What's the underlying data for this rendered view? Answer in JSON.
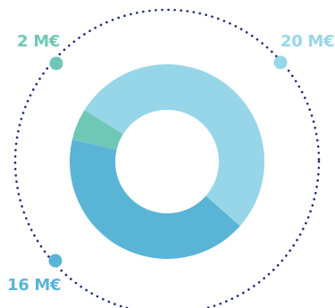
{
  "chart_data": {
    "type": "pie",
    "style": "donut",
    "slices": [
      {
        "label": "20 M€",
        "value": 20,
        "color": "#97d6e8"
      },
      {
        "label": "16 M€",
        "value": 16,
        "color": "#5ab4d6"
      },
      {
        "label": "2 M€",
        "value": 2,
        "color": "#6ec8b5"
      }
    ],
    "units": "M€",
    "outer_ring": "dotted",
    "ring_color": "#1e2a78"
  }
}
